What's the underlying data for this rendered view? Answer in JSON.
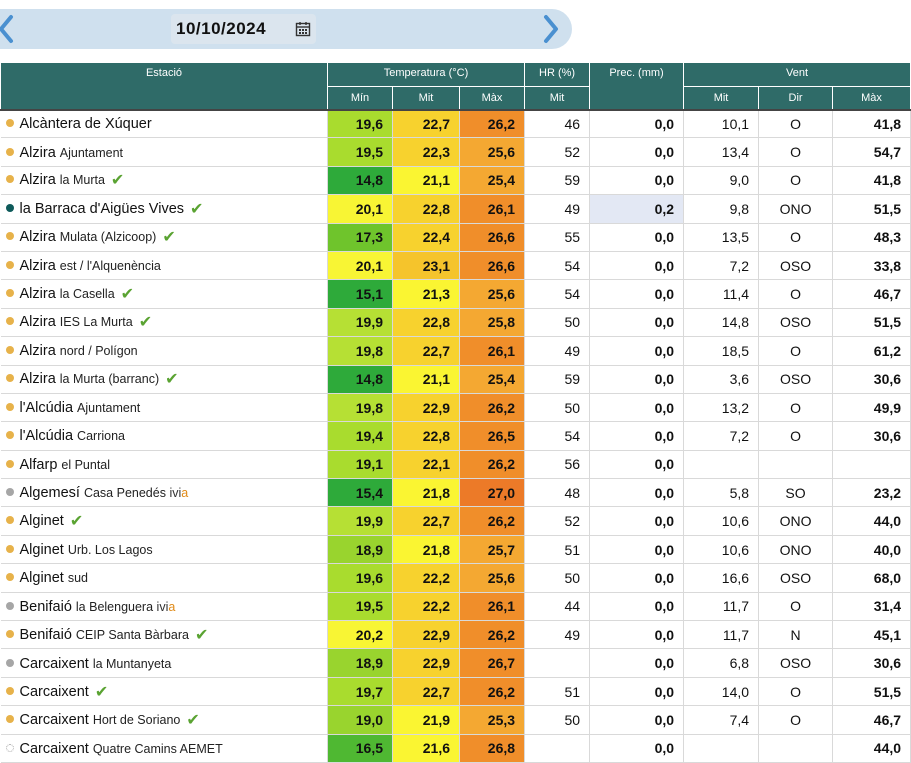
{
  "date": {
    "value": "10/10/2024",
    "prev_icon": "chevron-left-icon",
    "next_icon": "chevron-right-icon",
    "calendar_icon": "calendar-icon"
  },
  "colors": {
    "header_bg": "#2f6b68",
    "date_bar_bg": "#cfe0ee",
    "arrow": "#4a90d0",
    "dot_gold": "#e7b24a",
    "dot_teal": "#0e5a5a",
    "dot_gray": "#a6a6a6",
    "check": "#5aa332"
  },
  "headers": {
    "estacio": "Estació",
    "temperatura": "Temperatura (°C)",
    "hr": "HR (%)",
    "prec": "Prec. (mm)",
    "vent": "Vent",
    "t_min": "Mín",
    "t_mit": "Mit",
    "t_max": "Màx",
    "hr_mit": "Mit",
    "v_mit": "Mit",
    "v_dir": "Dir",
    "v_max": "Màx"
  },
  "stations": [
    {
      "name": "Alcàntera de Xúquer",
      "sub": "",
      "dot": "gold",
      "check": false,
      "ivia": false,
      "tmin": "19,6",
      "tmit": "22,7",
      "tmax": "26,2",
      "hr": "46",
      "prec": "0,0",
      "vmit": "10,1",
      "vdir": "O",
      "vmax": "41,8",
      "cmin": "#a9dc2e",
      "cmit": "#f7d22e",
      "cmax": "#f08e2a"
    },
    {
      "name": "Alzira",
      "sub": "Ajuntament",
      "dot": "gold",
      "check": false,
      "ivia": false,
      "tmin": "19,5",
      "tmit": "22,3",
      "tmax": "25,6",
      "hr": "52",
      "prec": "0,0",
      "vmit": "13,4",
      "vdir": "O",
      "vmax": "54,7",
      "cmin": "#a9dc2e",
      "cmit": "#f7d22e",
      "cmax": "#f4a832"
    },
    {
      "name": "Alzira",
      "sub": "la Murta",
      "dot": "gold",
      "check": true,
      "ivia": false,
      "tmin": "14,8",
      "tmit": "21,1",
      "tmax": "25,4",
      "hr": "59",
      "prec": "0,0",
      "vmit": "9,0",
      "vdir": "O",
      "vmax": "41,8",
      "cmin": "#2eaa3a",
      "cmit": "#faf532",
      "cmax": "#f4a832"
    },
    {
      "name": "la Barraca d'Aigües Vives",
      "sub": "",
      "dot": "teal",
      "check": true,
      "ivia": false,
      "tmin": "20,1",
      "tmit": "22,8",
      "tmax": "26,1",
      "hr": "49",
      "prec": "0,2",
      "vmit": "9,8",
      "vdir": "ONO",
      "vmax": "51,5",
      "cmin": "#f8f534",
      "cmit": "#f7d22e",
      "cmax": "#f08e2a"
    },
    {
      "name": "Alzira",
      "sub": "Mulata (Alzicoop)",
      "dot": "gold",
      "check": true,
      "ivia": false,
      "tmin": "17,3",
      "tmit": "22,4",
      "tmax": "26,6",
      "hr": "55",
      "prec": "0,0",
      "vmit": "13,5",
      "vdir": "O",
      "vmax": "48,3",
      "cmin": "#6fc42c",
      "cmit": "#f7d22e",
      "cmax": "#f08e2a"
    },
    {
      "name": "Alzira",
      "sub": "est / l'Alquenència",
      "dot": "gold",
      "check": false,
      "ivia": false,
      "tmin": "20,1",
      "tmit": "23,1",
      "tmax": "26,6",
      "hr": "54",
      "prec": "0,0",
      "vmit": "7,2",
      "vdir": "OSO",
      "vmax": "33,8",
      "cmin": "#f8f534",
      "cmit": "#f5c42c",
      "cmax": "#f08e2a"
    },
    {
      "name": "Alzira",
      "sub": "la Casella",
      "dot": "gold",
      "check": true,
      "ivia": false,
      "tmin": "15,1",
      "tmit": "21,3",
      "tmax": "25,6",
      "hr": "54",
      "prec": "0,0",
      "vmit": "11,4",
      "vdir": "O",
      "vmax": "46,7",
      "cmin": "#2eaa3a",
      "cmit": "#faf532",
      "cmax": "#f4a832"
    },
    {
      "name": "Alzira",
      "sub": "IES La Murta",
      "dot": "gold",
      "check": true,
      "ivia": false,
      "tmin": "19,9",
      "tmit": "22,8",
      "tmax": "25,8",
      "hr": "50",
      "prec": "0,0",
      "vmit": "14,8",
      "vdir": "OSO",
      "vmax": "51,5",
      "cmin": "#b6e034",
      "cmit": "#f7d22e",
      "cmax": "#f4a832"
    },
    {
      "name": "Alzira",
      "sub": "nord / Polígon",
      "dot": "gold",
      "check": false,
      "ivia": false,
      "tmin": "19,8",
      "tmit": "22,7",
      "tmax": "26,1",
      "hr": "49",
      "prec": "0,0",
      "vmit": "18,5",
      "vdir": "O",
      "vmax": "61,2",
      "cmin": "#b6e034",
      "cmit": "#f7d22e",
      "cmax": "#f08e2a"
    },
    {
      "name": "Alzira",
      "sub": "la Murta (barranc)",
      "dot": "gold",
      "check": true,
      "ivia": false,
      "tmin": "14,8",
      "tmit": "21,1",
      "tmax": "25,4",
      "hr": "59",
      "prec": "0,0",
      "vmit": "3,6",
      "vdir": "OSO",
      "vmax": "30,6",
      "cmin": "#2eaa3a",
      "cmit": "#faf532",
      "cmax": "#f4a832"
    },
    {
      "name": "l'Alcúdia",
      "sub": "Ajuntament",
      "dot": "gold",
      "check": false,
      "ivia": false,
      "tmin": "19,8",
      "tmit": "22,9",
      "tmax": "26,2",
      "hr": "50",
      "prec": "0,0",
      "vmit": "13,2",
      "vdir": "O",
      "vmax": "49,9",
      "cmin": "#b6e034",
      "cmit": "#f7d22e",
      "cmax": "#f08e2a"
    },
    {
      "name": "l'Alcúdia",
      "sub": "Carriona",
      "dot": "gold",
      "check": false,
      "ivia": false,
      "tmin": "19,4",
      "tmit": "22,8",
      "tmax": "26,5",
      "hr": "54",
      "prec": "0,0",
      "vmit": "7,2",
      "vdir": "O",
      "vmax": "30,6",
      "cmin": "#a9dc2e",
      "cmit": "#f7d22e",
      "cmax": "#f08e2a"
    },
    {
      "name": "Alfarp",
      "sub": "el Puntal",
      "dot": "gold",
      "check": false,
      "ivia": false,
      "tmin": "19,1",
      "tmit": "22,1",
      "tmax": "26,2",
      "hr": "56",
      "prec": "0,0",
      "vmit": "",
      "vdir": "",
      "vmax": "",
      "cmin": "#a9dc2e",
      "cmit": "#f7d22e",
      "cmax": "#f08e2a"
    },
    {
      "name": "Algemesí",
      "sub": "Casa Penedés",
      "dot": "gray",
      "check": false,
      "ivia": true,
      "tmin": "15,4",
      "tmit": "21,8",
      "tmax": "27,0",
      "hr": "48",
      "prec": "0,0",
      "vmit": "5,8",
      "vdir": "SO",
      "vmax": "23,2",
      "cmin": "#2eaa3a",
      "cmit": "#faf532",
      "cmax": "#ec7a28"
    },
    {
      "name": "Alginet",
      "sub": "",
      "dot": "gold",
      "check": true,
      "ivia": false,
      "tmin": "19,9",
      "tmit": "22,7",
      "tmax": "26,2",
      "hr": "52",
      "prec": "0,0",
      "vmit": "10,6",
      "vdir": "ONO",
      "vmax": "44,0",
      "cmin": "#b6e034",
      "cmit": "#f7d22e",
      "cmax": "#f08e2a"
    },
    {
      "name": "Alginet",
      "sub": "Urb. Los Lagos",
      "dot": "gold",
      "check": false,
      "ivia": false,
      "tmin": "18,9",
      "tmit": "21,8",
      "tmax": "25,7",
      "hr": "51",
      "prec": "0,0",
      "vmit": "10,6",
      "vdir": "ONO",
      "vmax": "40,0",
      "cmin": "#99d42e",
      "cmit": "#faf532",
      "cmax": "#f4a832"
    },
    {
      "name": "Alginet",
      "sub": "sud",
      "dot": "gold",
      "check": false,
      "ivia": false,
      "tmin": "19,6",
      "tmit": "22,2",
      "tmax": "25,6",
      "hr": "50",
      "prec": "0,0",
      "vmit": "16,6",
      "vdir": "OSO",
      "vmax": "68,0",
      "cmin": "#a9dc2e",
      "cmit": "#f7d22e",
      "cmax": "#f4a832"
    },
    {
      "name": "Benifaió",
      "sub": "la Belenguera",
      "dot": "gray",
      "check": false,
      "ivia": true,
      "tmin": "19,5",
      "tmit": "22,2",
      "tmax": "26,1",
      "hr": "44",
      "prec": "0,0",
      "vmit": "11,7",
      "vdir": "O",
      "vmax": "31,4",
      "cmin": "#a9dc2e",
      "cmit": "#f7d22e",
      "cmax": "#f08e2a"
    },
    {
      "name": "Benifaió",
      "sub": "CEIP Santa Bàrbara",
      "dot": "gold",
      "check": true,
      "ivia": false,
      "tmin": "20,2",
      "tmit": "22,9",
      "tmax": "26,2",
      "hr": "49",
      "prec": "0,0",
      "vmit": "11,7",
      "vdir": "N",
      "vmax": "45,1",
      "cmin": "#f8f534",
      "cmit": "#f7d22e",
      "cmax": "#f08e2a"
    },
    {
      "name": "Carcaixent",
      "sub": "la Muntanyeta",
      "dot": "gray",
      "check": false,
      "ivia": false,
      "tmin": "18,9",
      "tmit": "22,9",
      "tmax": "26,7",
      "hr": "",
      "prec": "0,0",
      "vmit": "6,8",
      "vdir": "OSO",
      "vmax": "30,6",
      "cmin": "#99d42e",
      "cmit": "#f7d22e",
      "cmax": "#f08e2a"
    },
    {
      "name": "Carcaixent",
      "sub": "",
      "dot": "gold",
      "check": true,
      "ivia": false,
      "tmin": "19,7",
      "tmit": "22,7",
      "tmax": "26,2",
      "hr": "51",
      "prec": "0,0",
      "vmit": "14,0",
      "vdir": "O",
      "vmax": "51,5",
      "cmin": "#a9dc2e",
      "cmit": "#f7d22e",
      "cmax": "#f08e2a"
    },
    {
      "name": "Carcaixent",
      "sub": "Hort de Soriano",
      "dot": "gold",
      "check": true,
      "ivia": false,
      "tmin": "19,0",
      "tmit": "21,9",
      "tmax": "25,3",
      "hr": "50",
      "prec": "0,0",
      "vmit": "7,4",
      "vdir": "O",
      "vmax": "46,7",
      "cmin": "#99d42e",
      "cmit": "#faf532",
      "cmax": "#f4a832"
    },
    {
      "name": "Carcaixent",
      "sub": "Quatre Camins AEMET",
      "dot": "empty",
      "check": false,
      "ivia": false,
      "tmin": "16,5",
      "tmit": "21,6",
      "tmax": "26,8",
      "hr": "",
      "prec": "0,0",
      "vmit": "",
      "vdir": "",
      "vmax": "44,0",
      "cmin": "#4fb832",
      "cmit": "#faf532",
      "cmax": "#f08e2a"
    }
  ]
}
